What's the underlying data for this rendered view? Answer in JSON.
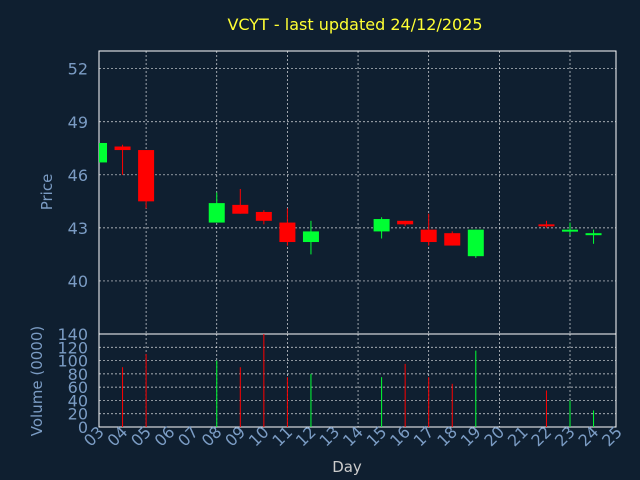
{
  "chart_data": {
    "type": "candlestick",
    "title": "VCYT - last updated 24/12/2025",
    "xlabel": "Day",
    "price_ylabel": "Price",
    "volume_ylabel": "Volume (0000)",
    "x_ticks": [
      "03",
      "04",
      "05",
      "06",
      "07",
      "08",
      "09",
      "10",
      "11",
      "12",
      "13",
      "14",
      "15",
      "16",
      "17",
      "18",
      "19",
      "20",
      "21",
      "22",
      "23",
      "24",
      "25"
    ],
    "price_ticks": [
      40,
      43,
      46,
      49,
      52
    ],
    "price_ylim": [
      37.0,
      53.0
    ],
    "volume_ticks": [
      0,
      20,
      40,
      60,
      80,
      100,
      120,
      140
    ],
    "volume_ylim": [
      0,
      140
    ],
    "grid": true,
    "up_color": "#00ff33",
    "down_color": "#ff0000",
    "candles": [
      {
        "day": "03",
        "open": 46.7,
        "high": 47.8,
        "low": 46.7,
        "close": 47.8,
        "volume": 0
      },
      {
        "day": "04",
        "open": 47.6,
        "high": 47.7,
        "low": 46.0,
        "close": 47.4,
        "volume": 90
      },
      {
        "day": "05",
        "open": 47.4,
        "high": 47.4,
        "low": 44.1,
        "close": 44.5,
        "volume": 110
      },
      {
        "day": "08",
        "open": 43.3,
        "high": 45.0,
        "low": 43.3,
        "close": 44.4,
        "volume": 100
      },
      {
        "day": "09",
        "open": 44.3,
        "high": 45.2,
        "low": 43.8,
        "close": 43.8,
        "volume": 90
      },
      {
        "day": "10",
        "open": 43.9,
        "high": 44.0,
        "low": 43.2,
        "close": 43.4,
        "volume": 140
      },
      {
        "day": "11",
        "open": 43.3,
        "high": 44.1,
        "low": 42.0,
        "close": 42.2,
        "volume": 75
      },
      {
        "day": "12",
        "open": 42.2,
        "high": 43.4,
        "low": 41.5,
        "close": 42.8,
        "volume": 80
      },
      {
        "day": "15",
        "open": 42.8,
        "high": 43.6,
        "low": 42.4,
        "close": 43.5,
        "volume": 75
      },
      {
        "day": "16",
        "open": 43.4,
        "high": 43.4,
        "low": 43.1,
        "close": 43.2,
        "volume": 95
      },
      {
        "day": "17",
        "open": 42.9,
        "high": 43.8,
        "low": 42.0,
        "close": 42.2,
        "volume": 75
      },
      {
        "day": "18",
        "open": 42.7,
        "high": 42.8,
        "low": 42.0,
        "close": 42.0,
        "volume": 65
      },
      {
        "day": "19",
        "open": 41.4,
        "high": 42.9,
        "low": 41.3,
        "close": 42.9,
        "volume": 115
      },
      {
        "day": "22",
        "open": 43.2,
        "high": 43.4,
        "low": 43.0,
        "close": 43.1,
        "volume": 55
      },
      {
        "day": "23",
        "open": 42.8,
        "high": 43.3,
        "low": 42.6,
        "close": 42.9,
        "volume": 40
      },
      {
        "day": "24",
        "open": 42.6,
        "high": 42.9,
        "low": 42.1,
        "close": 42.7,
        "volume": 25
      }
    ]
  }
}
